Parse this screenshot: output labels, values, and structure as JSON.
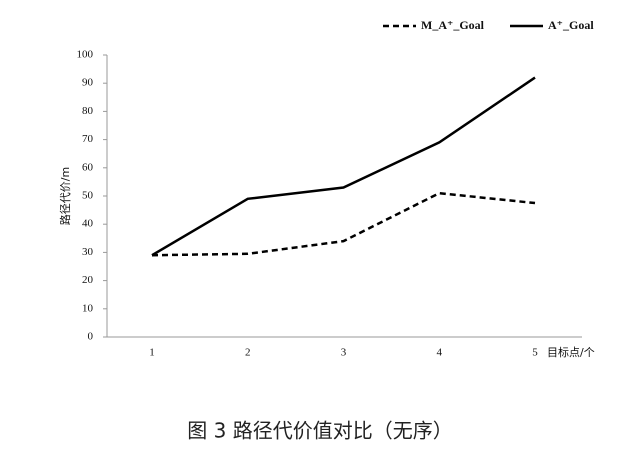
{
  "chart_data": {
    "type": "line",
    "categories": [
      "1",
      "2",
      "3",
      "4",
      "5"
    ],
    "series": [
      {
        "name": "M_A⁺_Goal",
        "color": "#000000",
        "dash": true,
        "values": [
          29,
          29.5,
          34,
          51,
          47.5
        ]
      },
      {
        "name": "A⁺_Goal",
        "color": "#000000",
        "dash": false,
        "values": [
          29,
          49,
          53,
          69,
          92
        ]
      }
    ],
    "ylim": [
      0,
      100
    ],
    "yticks": [
      0,
      10,
      20,
      30,
      40,
      50,
      60,
      70,
      80,
      90,
      100
    ],
    "y_label": "路径代价/m",
    "x_label": "目标点/个",
    "caption": "图 3  路径代价值对比（无序）",
    "grid": false,
    "legend": "top-right"
  }
}
